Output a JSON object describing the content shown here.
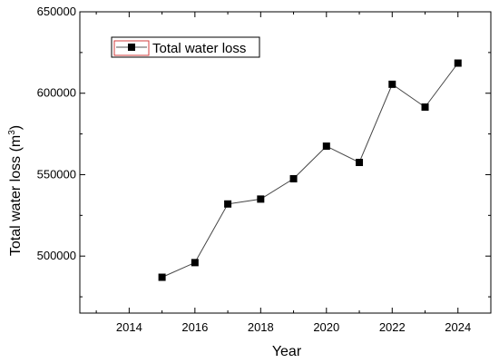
{
  "chart_data": {
    "type": "line",
    "xlabel": "Year",
    "ylabel_main": "Total water loss (m",
    "ylabel_sup": "3",
    "ylabel_end": ")",
    "xlim": [
      2012.5,
      2025
    ],
    "ylim": [
      465000,
      650000
    ],
    "xticks": [
      2014,
      2016,
      2018,
      2020,
      2022,
      2024
    ],
    "yticks": [
      500000,
      550000,
      600000,
      650000
    ],
    "grid": false,
    "legend_position": "top-left",
    "series": [
      {
        "name": "Total water loss",
        "marker": "square",
        "color": "#000000",
        "x": [
          2015,
          2016,
          2017,
          2018,
          2019,
          2020,
          2021,
          2022,
          2023,
          2024
        ],
        "y": [
          487000,
          496000,
          532000,
          535000,
          547500,
          567500,
          557500,
          605500,
          591500,
          618500
        ]
      }
    ]
  }
}
